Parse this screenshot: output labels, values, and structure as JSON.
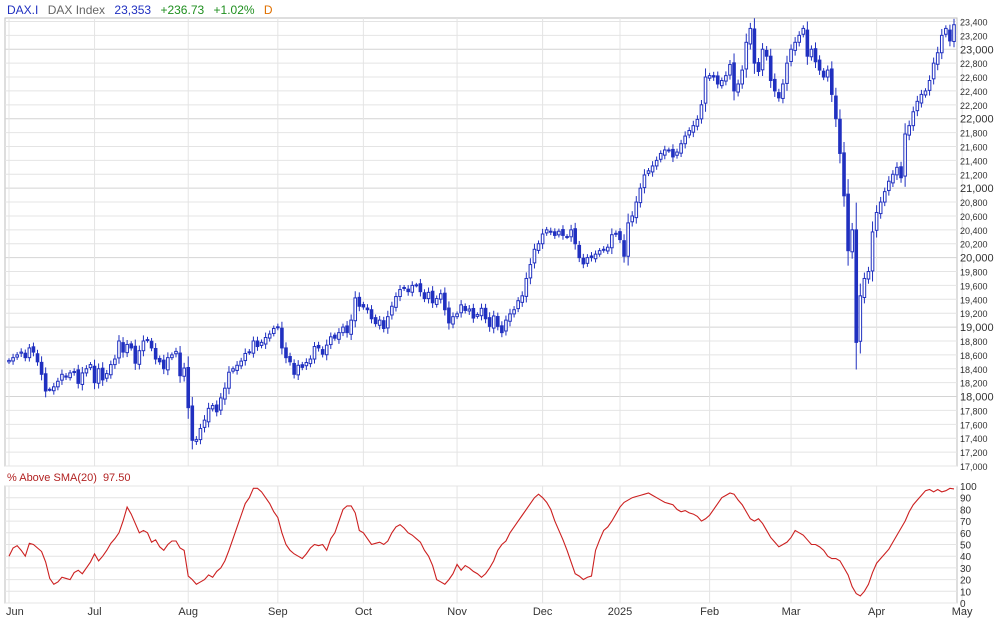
{
  "header": {
    "symbol": "DAX.I",
    "name": "DAX Index",
    "last": "23,353",
    "change": "+236.73",
    "change_pct": "+1.02%",
    "period": "D"
  },
  "indicator": {
    "label": "% Above SMA(20)",
    "value": "97.50"
  },
  "colors": {
    "candle": "#2030c0",
    "indicator_line": "#cc2020",
    "up": "#1f8f1f",
    "down": "#cc2020",
    "period": "#e07000",
    "grid": "#e4e4e4"
  },
  "chart_data": [
    {
      "type": "candlestick",
      "title": "DAX Index",
      "ylim": [
        17000,
        23450
      ],
      "y_ticks": [
        "17,000",
        "17,200",
        "17,400",
        "17,600",
        "17,800",
        "18,000",
        "18,200",
        "18,400",
        "18,600",
        "18,800",
        "19,000",
        "19,200",
        "19,400",
        "19,600",
        "19,800",
        "20,000",
        "20,200",
        "20,400",
        "20,600",
        "20,800",
        "21,000",
        "21,200",
        "21,400",
        "21,600",
        "21,800",
        "22,000",
        "22,200",
        "22,400",
        "22,600",
        "22,800",
        "23,000",
        "23,200",
        "23,400"
      ],
      "y_tick_values": [
        17000,
        17200,
        17400,
        17600,
        17800,
        18000,
        18200,
        18400,
        18600,
        18800,
        19000,
        19200,
        19400,
        19600,
        19800,
        20000,
        20200,
        20400,
        20600,
        20800,
        21000,
        21200,
        21400,
        21600,
        21800,
        22000,
        22200,
        22400,
        22600,
        22800,
        23000,
        23200,
        23400
      ],
      "major_ticks": [
        18000,
        19000,
        20000,
        21000,
        22000,
        23000
      ],
      "x_labels": [
        {
          "label": "Jun",
          "index": 0
        },
        {
          "label": "Jul",
          "index": 21
        },
        {
          "label": "Aug",
          "index": 44
        },
        {
          "label": "Sep",
          "index": 66
        },
        {
          "label": "Oct",
          "index": 87
        },
        {
          "label": "Nov",
          "index": 110
        },
        {
          "label": "Dec",
          "index": 131
        },
        {
          "label": "2025",
          "index": 150
        },
        {
          "label": "Feb",
          "index": 172
        },
        {
          "label": "Mar",
          "index": 192
        },
        {
          "label": "Apr",
          "index": 213
        },
        {
          "label": "May",
          "index": 234
        }
      ],
      "closes": [
        18520,
        18560,
        18600,
        18640,
        18560,
        18700,
        18640,
        18500,
        18320,
        18080,
        18100,
        18140,
        18220,
        18320,
        18280,
        18340,
        18360,
        18190,
        18340,
        18400,
        18460,
        18200,
        18400,
        18240,
        18330,
        18460,
        18540,
        18800,
        18640,
        18750,
        18700,
        18480,
        18660,
        18800,
        18820,
        18700,
        18540,
        18500,
        18400,
        18560,
        18600,
        18650,
        18300,
        18410,
        17840,
        17370,
        17380,
        17540,
        17660,
        17830,
        17870,
        17780,
        17980,
        18120,
        18350,
        18400,
        18450,
        18510,
        18620,
        18640,
        18800,
        18720,
        18780,
        18850,
        18900,
        18980,
        19000,
        18700,
        18560,
        18500,
        18320,
        18450,
        18420,
        18490,
        18540,
        18720,
        18700,
        18610,
        18740,
        18860,
        18840,
        18920,
        19000,
        18920,
        19100,
        19420,
        19300,
        19290,
        19250,
        19120,
        19050,
        19100,
        18980,
        19150,
        19300,
        19440,
        19540,
        19570,
        19510,
        19600,
        19600,
        19510,
        19410,
        19500,
        19350,
        19410,
        19480,
        19250,
        19060,
        19150,
        19190,
        19320,
        19240,
        19260,
        19130,
        19180,
        19270,
        19120,
        19010,
        19160,
        19010,
        18920,
        19100,
        19190,
        19250,
        19380,
        19450,
        19700,
        19900,
        20120,
        20200,
        20340,
        20400,
        20380,
        20320,
        20380,
        20320,
        20300,
        20400,
        20200,
        20000,
        19910,
        20000,
        20000,
        20050,
        20100,
        20120,
        20150,
        20330,
        20350,
        20260,
        20020,
        20500,
        20600,
        20800,
        21000,
        21190,
        21250,
        21320,
        21400,
        21500,
        21550,
        21550,
        21450,
        21520,
        21640,
        21750,
        21830,
        21900,
        21990,
        22200,
        22600,
        22620,
        22600,
        22500,
        22550,
        22620,
        22780,
        22400,
        22500,
        22700,
        23100,
        23300,
        22800,
        22680,
        23000,
        22900,
        22550,
        22400,
        22300,
        22500,
        22800,
        23000,
        23100,
        23200,
        23300,
        22900,
        23000,
        22820,
        22700,
        22600,
        22700,
        22350,
        22000,
        21500,
        20890,
        20100,
        20400,
        18780,
        19450,
        19700,
        19800,
        20370,
        20650,
        20800,
        20950,
        21100,
        21200,
        21300,
        21150,
        21780,
        21900,
        22100,
        22250,
        22350,
        22400,
        22550,
        22800,
        22950,
        23200,
        23300,
        23120,
        23353
      ],
      "indicator": {
        "name": "% Above SMA(20)",
        "ylim": [
          0,
          100
        ],
        "y_ticks": [
          "0",
          "10",
          "20",
          "30",
          "40",
          "50",
          "60",
          "70",
          "80",
          "90",
          "100"
        ],
        "values": [
          40,
          47,
          49,
          45,
          40,
          51,
          50,
          47,
          44,
          35,
          21,
          16,
          18,
          22,
          21,
          20,
          26,
          28,
          25,
          30,
          35,
          42,
          36,
          40,
          45,
          51,
          55,
          60,
          70,
          82,
          76,
          68,
          60,
          62,
          60,
          52,
          54,
          48,
          45,
          50,
          53,
          53,
          47,
          45,
          23,
          20,
          16,
          18,
          20,
          24,
          22,
          27,
          30,
          36,
          45,
          55,
          65,
          75,
          85,
          90,
          98,
          98,
          95,
          90,
          85,
          78,
          73,
          60,
          50,
          45,
          42,
          40,
          38,
          42,
          47,
          50,
          49,
          50,
          45,
          55,
          60,
          70,
          80,
          83,
          83,
          77,
          62,
          60,
          55,
          50,
          51,
          52,
          50,
          53,
          60,
          65,
          67,
          64,
          60,
          58,
          55,
          52,
          45,
          40,
          32,
          20,
          18,
          16,
          20,
          25,
          33,
          28,
          32,
          30,
          27,
          25,
          22,
          25,
          30,
          36,
          45,
          50,
          53,
          60,
          65,
          70,
          75,
          80,
          85,
          90,
          93,
          90,
          86,
          80,
          70,
          62,
          54,
          45,
          35,
          25,
          23,
          20,
          22,
          23,
          45,
          54,
          62,
          65,
          70,
          76,
          82,
          86,
          88,
          90,
          91,
          92,
          93,
          94,
          92,
          90,
          88,
          86,
          85,
          84,
          80,
          78,
          79,
          77,
          76,
          74,
          70,
          72,
          75,
          80,
          85,
          90,
          92,
          94,
          93,
          88,
          84,
          78,
          72,
          70,
          72,
          68,
          62,
          56,
          52,
          48,
          50,
          52,
          56,
          62,
          60,
          58,
          54,
          50,
          50,
          48,
          45,
          40,
          38,
          38,
          36,
          30,
          24,
          14,
          8,
          6,
          10,
          16,
          26,
          34,
          38,
          42,
          46,
          52,
          58,
          64,
          70,
          78,
          84,
          88,
          92,
          96,
          97,
          95,
          97,
          95,
          96,
          98,
          97.5
        ]
      }
    }
  ]
}
